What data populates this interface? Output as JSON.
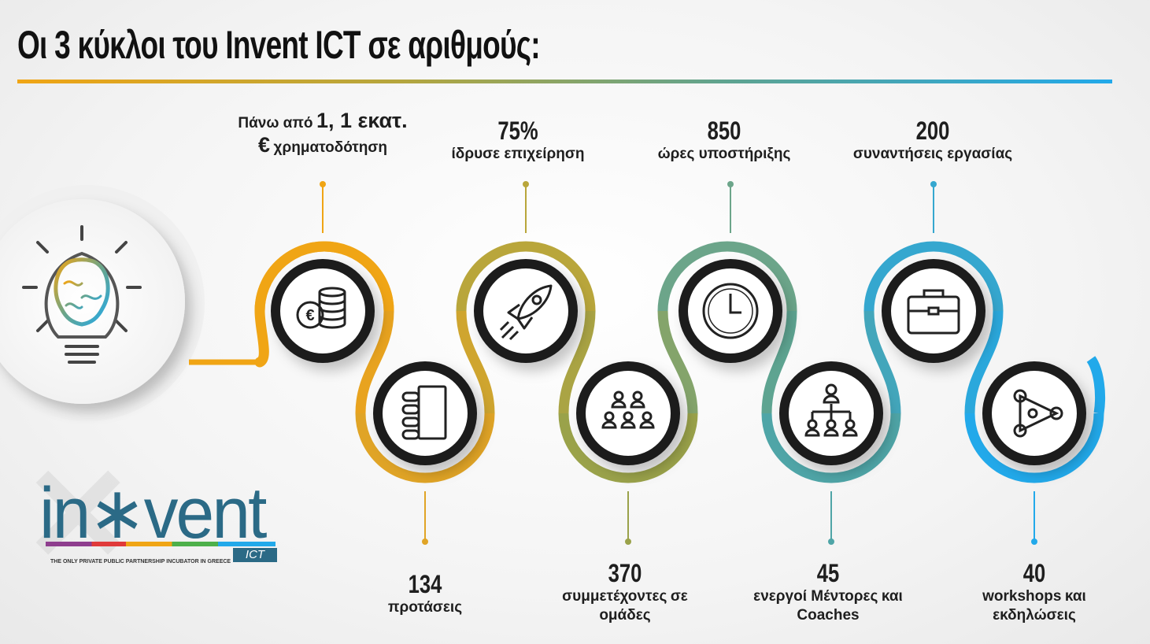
{
  "title": "Οι 3 κύκλοι του Invent ICT σε αριθμούς:",
  "colors": {
    "orange": "#f0a515",
    "olive": "#a9a341",
    "teal": "#5ea491",
    "blue": "#22a9ea",
    "dark_ring": "#1a1a1a"
  },
  "stats": {
    "funding": {
      "line1": "Πάνω από",
      "line2": "1, 1 εκατ. €",
      "line3": "χρηματοδότηση",
      "icon": "coins-euro-icon"
    },
    "proposals": {
      "value": "134",
      "label": "προτάσεις",
      "icon": "document-list-icon"
    },
    "founded": {
      "value": "75%",
      "label": "ίδρυσε επιχείρηση",
      "icon": "rocket-icon"
    },
    "participants": {
      "value": "370",
      "label1": "συμμετέχοντες",
      "label2": "σε ομάδες",
      "icon": "people-group-icon"
    },
    "hours": {
      "value": "850",
      "label": "ώρες υποστήριξης",
      "icon": "clock-icon"
    },
    "mentors": {
      "value": "45",
      "label1": "ενεργοί Μέντορες",
      "label2": "και Coaches",
      "icon": "org-chart-icon"
    },
    "meetings": {
      "value": "200",
      "label": "συναντήσεις εργασίας",
      "icon": "briefcase-icon"
    },
    "workshops": {
      "value": "40",
      "label1": "workshops",
      "label2": "και εκδηλώσεις",
      "icon": "team-network-icon"
    }
  },
  "logo": {
    "wordmark": "in∗vent",
    "product": "ICT",
    "tagline": "THE ONLY PRIVATE PUBLIC PARTNERSHIP INCUBATOR IN GREECE"
  },
  "hero_icon": "lightbulb-brain-icon"
}
